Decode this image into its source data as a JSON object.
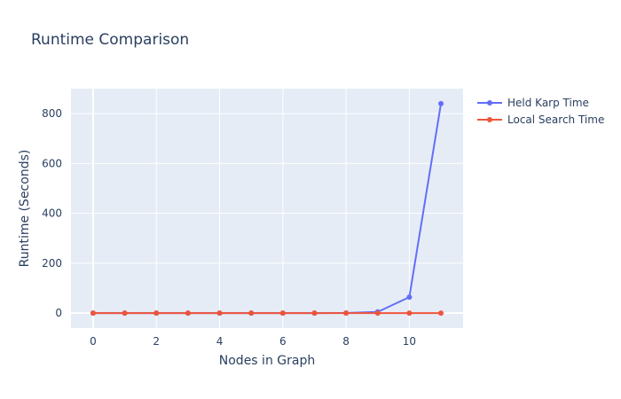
{
  "chart_data": {
    "type": "line",
    "title": "Runtime Comparison",
    "xlabel": "Nodes in Graph",
    "ylabel": "Runtime (Seconds)",
    "x": [
      0,
      1,
      2,
      3,
      4,
      5,
      6,
      7,
      8,
      9,
      10,
      11
    ],
    "xlim": [
      -0.7,
      11.7
    ],
    "ylim": [
      -60,
      900
    ],
    "xticks": [
      0,
      2,
      4,
      6,
      8,
      10
    ],
    "xtick_labels": [
      "0",
      "2",
      "4",
      "6",
      "8",
      "10"
    ],
    "yticks": [
      0,
      200,
      400,
      600,
      800
    ],
    "ytick_labels": [
      "0",
      "200",
      "400",
      "600",
      "800"
    ],
    "grid": true,
    "legend_position": "top-right outside",
    "series": [
      {
        "name": "Held Karp Time",
        "color": "#636efa",
        "values": [
          0,
          0,
          0,
          0,
          0,
          0,
          0,
          0,
          0.5,
          5,
          64,
          840
        ]
      },
      {
        "name": "Local Search Time",
        "color": "#ef553b",
        "values": [
          0,
          0,
          0,
          0,
          0,
          0,
          0,
          0,
          0,
          0,
          0,
          0
        ]
      }
    ]
  },
  "colors": {
    "plot_bg": "#e5ecf6",
    "grid": "#ffffff",
    "text": "#2a3f5f"
  }
}
